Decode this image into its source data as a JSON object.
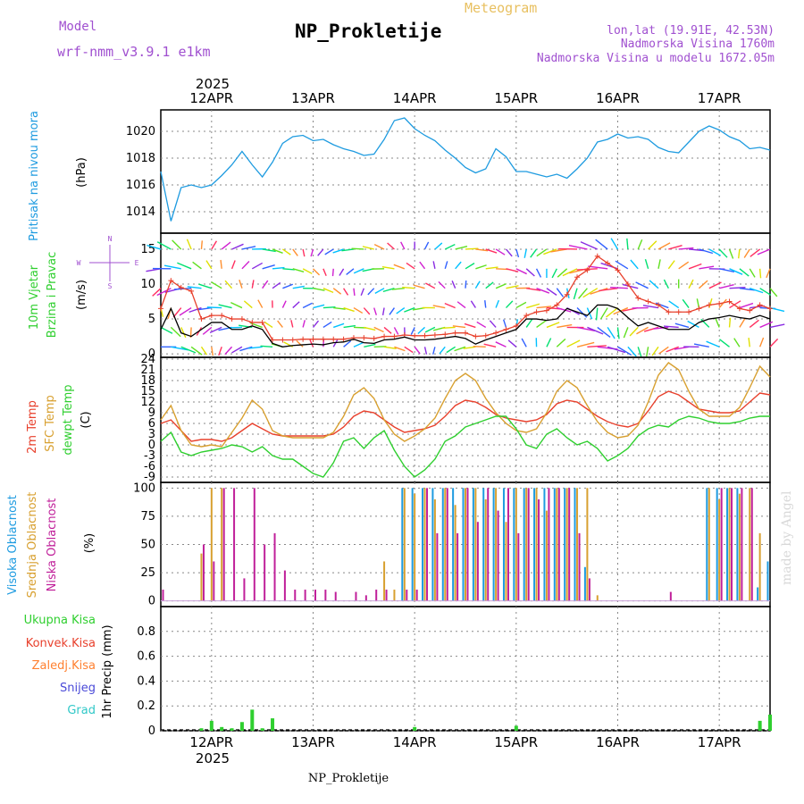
{
  "header": {
    "model_label": "Model",
    "model_name": "wrf-nmm_v3.9.1 e1km",
    "title": "NP_Prokletije",
    "meteogram_label": "Meteogram",
    "coords": "lon,lat (19.91E, 42.53N)",
    "altitude": "Nadmorska Visina 1760m",
    "model_altitude": "Nadmorska Visina u modelu 1672.05m",
    "year": "2025",
    "footer_station": "NP_Prokletije",
    "watermark": "made by Angel"
  },
  "colors": {
    "pressure": "#1e9be0",
    "temp2m": "#e8402c",
    "sfc_temp": "#d8a030",
    "dewpt": "#2fcf2f",
    "high_cloud": "#1e9be0",
    "mid_cloud": "#d8a030",
    "low_cloud": "#c0209a",
    "purple_text": "#a050d0",
    "orange_text": "#e8c060"
  },
  "chart_data": [
    {
      "type": "line",
      "panel": "pressure",
      "ylabel": "Pritisak na nivou mora",
      "unit": "(hPa)",
      "x_range_days": [
        11.5,
        17.5
      ],
      "ylim": [
        1012.4,
        1021.6
      ],
      "yticks": [
        "1014",
        "1016",
        "1018",
        "1020"
      ],
      "x": [
        11.5,
        11.6,
        11.7,
        11.8,
        11.9,
        12.0,
        12.1,
        12.2,
        12.3,
        12.4,
        12.5,
        12.6,
        12.7,
        12.8,
        12.9,
        13.0,
        13.1,
        13.2,
        13.3,
        13.4,
        13.5,
        13.6,
        13.7,
        13.8,
        13.9,
        14.0,
        14.1,
        14.2,
        14.3,
        14.4,
        14.5,
        14.6,
        14.7,
        14.8,
        14.9,
        15.0,
        15.1,
        15.2,
        15.3,
        15.4,
        15.5,
        15.6,
        15.7,
        15.8,
        15.9,
        16.0,
        16.1,
        16.2,
        16.3,
        16.4,
        16.5,
        16.6,
        16.7,
        16.8,
        16.9,
        17.0,
        17.1,
        17.2,
        17.3,
        17.4,
        17.5
      ],
      "values": [
        1017.0,
        1013.3,
        1015.8,
        1016.0,
        1015.8,
        1016.0,
        1016.7,
        1017.5,
        1018.5,
        1017.5,
        1016.6,
        1017.7,
        1019.1,
        1019.6,
        1019.7,
        1019.3,
        1019.4,
        1019.0,
        1018.7,
        1018.5,
        1018.2,
        1018.3,
        1019.4,
        1020.8,
        1021.0,
        1020.2,
        1019.7,
        1019.3,
        1018.6,
        1018.0,
        1017.3,
        1016.9,
        1017.2,
        1018.7,
        1018.1,
        1017.0,
        1017.0,
        1016.8,
        1016.6,
        1016.8,
        1016.5,
        1017.2,
        1018.0,
        1019.2,
        1019.4,
        1019.8,
        1019.5,
        1019.6,
        1019.4,
        1018.8,
        1018.5,
        1018.4,
        1019.2,
        1020.0,
        1020.4,
        1020.1,
        1019.6,
        1019.3,
        1018.7,
        1018.8,
        1018.6
      ]
    },
    {
      "type": "line",
      "panel": "wind",
      "ylabel": "10m Vjetar Brzina i Pravac",
      "unit": "(m/s)",
      "compass": {
        "n": "N",
        "w": "W",
        "e": "E",
        "s": "S"
      },
      "ylim": [
        -0.5,
        17.3
      ],
      "yticks": [
        "0",
        "5",
        "10",
        "15"
      ],
      "series": [
        {
          "values": [
            3.5,
            6.5,
            3.0,
            2.5,
            3.5,
            4.5,
            4.5,
            3.5,
            3.5,
            4.0,
            3.5,
            1.5,
            1.0,
            1.2,
            1.3,
            1.4,
            1.3,
            1.6,
            1.7,
            2.1,
            1.6,
            1.5,
            2.0,
            2.1,
            2.4,
            2.0,
            2.0,
            2.1,
            2.3,
            2.5,
            2.2,
            1.4,
            2.0,
            2.5,
            3.0,
            3.5,
            5.0,
            5.0,
            4.8,
            5.0,
            6.5,
            6.0,
            5.5,
            7.0,
            7.0,
            6.5,
            5.2,
            4.0,
            4.5,
            4.0,
            3.5,
            3.5,
            3.5,
            4.5,
            5.0,
            5.2,
            5.5,
            5.2,
            5.0,
            5.5,
            5.0
          ]
        },
        {
          "values": [
            6.5,
            10.5,
            9.5,
            9.0,
            5.0,
            5.5,
            5.5,
            5.0,
            5.0,
            4.5,
            4.5,
            2.0,
            2.0,
            2.0,
            2.1,
            2.1,
            2.1,
            2.1,
            2.1,
            2.3,
            2.3,
            2.2,
            2.5,
            2.5,
            2.7,
            2.6,
            2.6,
            2.7,
            2.8,
            3.0,
            3.0,
            2.5,
            2.6,
            3.0,
            3.5,
            4.0,
            5.5,
            6.0,
            6.2,
            7.0,
            8.5,
            11.0,
            12.0,
            14.0,
            13.0,
            12.0,
            10.0,
            8.0,
            7.5,
            7.0,
            6.0,
            6.0,
            6.0,
            6.5,
            7.0,
            7.2,
            7.5,
            6.5,
            6.2,
            7.0,
            6.5
          ]
        }
      ]
    },
    {
      "type": "line",
      "panel": "temperature",
      "unit": "(C)",
      "ylim": [
        -10.5,
        24.5
      ],
      "yticks": [
        "-9",
        "-6",
        "-3",
        "0",
        "3",
        "6",
        "9",
        "12",
        "15",
        "18",
        "21",
        "24"
      ],
      "series": [
        {
          "name": "2m Temp",
          "values": [
            6.0,
            7.0,
            4.0,
            1.0,
            1.5,
            1.5,
            1.0,
            2.0,
            4.0,
            6.0,
            4.5,
            3.0,
            2.5,
            2.5,
            2.5,
            2.5,
            2.5,
            3.0,
            5.0,
            8.0,
            9.5,
            9.0,
            7.0,
            5.0,
            3.5,
            4.0,
            4.5,
            5.5,
            8.0,
            11.0,
            12.5,
            12.0,
            10.5,
            8.5,
            7.5,
            7.0,
            6.5,
            7.0,
            8.5,
            11.5,
            12.5,
            12.0,
            10.0,
            8.0,
            6.5,
            5.5,
            5.0,
            6.0,
            9.5,
            13.5,
            15.0,
            14.0,
            12.0,
            10.0,
            9.5,
            9.0,
            9.0,
            9.5,
            12.0,
            14.5,
            14.0
          ]
        },
        {
          "name": "SFC Temp",
          "values": [
            7.0,
            11.0,
            4.0,
            0.0,
            -0.5,
            0.0,
            -0.5,
            3.5,
            7.5,
            12.5,
            10.0,
            4.0,
            2.5,
            2.0,
            2.0,
            2.0,
            2.0,
            3.5,
            8.0,
            14.0,
            16.0,
            13.0,
            7.0,
            3.0,
            1.0,
            2.5,
            4.5,
            7.5,
            13.0,
            18.0,
            20.0,
            18.0,
            13.0,
            9.0,
            6.0,
            4.0,
            3.5,
            4.5,
            9.0,
            15.0,
            18.0,
            16.0,
            11.0,
            6.5,
            3.5,
            2.0,
            2.5,
            5.5,
            12.0,
            19.5,
            23.0,
            21.0,
            15.0,
            10.0,
            8.0,
            8.0,
            8.0,
            10.5,
            16.0,
            22.0,
            19.0
          ]
        },
        {
          "name": "dewpt Temp",
          "values": [
            1.0,
            3.5,
            -2.0,
            -3.0,
            -2.0,
            -1.5,
            -1.0,
            0.0,
            -0.5,
            -2.0,
            -0.5,
            -3.0,
            -4.0,
            -4.0,
            -6.0,
            -8.0,
            -9.0,
            -5.0,
            1.0,
            2.0,
            -1.0,
            2.0,
            4.0,
            -1.5,
            -6.0,
            -9.0,
            -7.0,
            -4.0,
            1.0,
            2.5,
            5.0,
            6.0,
            7.0,
            8.0,
            8.0,
            4.5,
            0.0,
            -1.0,
            3.0,
            4.5,
            2.0,
            0.0,
            1.0,
            -1.0,
            -4.5,
            -3.0,
            -1.0,
            2.5,
            4.5,
            5.5,
            5.0,
            7.0,
            8.0,
            7.5,
            6.5,
            6.0,
            6.0,
            6.5,
            7.5,
            8.0,
            8.0
          ]
        }
      ]
    },
    {
      "type": "bar",
      "panel": "clouds",
      "unit": "(%)",
      "ylim": [
        -5,
        105
      ],
      "yticks": [
        "0",
        "25",
        "50",
        "75",
        "100"
      ],
      "series": [
        {
          "name": "Visoka Oblacnost",
          "values": [
            0,
            0,
            0,
            0,
            0,
            0,
            0,
            0,
            0,
            0,
            0,
            0,
            0,
            0,
            0,
            0,
            0,
            0,
            0,
            0,
            0,
            0,
            0,
            0,
            100,
            100,
            100,
            100,
            100,
            100,
            100,
            100,
            100,
            100,
            100,
            100,
            100,
            100,
            100,
            100,
            100,
            100,
            30,
            0,
            0,
            0,
            0,
            0,
            0,
            0,
            0,
            0,
            0,
            0,
            100,
            100,
            100,
            100,
            0,
            12,
            35
          ]
        },
        {
          "name": "Srednja Oblacnost",
          "values": [
            0,
            0,
            0,
            0,
            42,
            100,
            100,
            0,
            0,
            0,
            0,
            0,
            0,
            0,
            0,
            0,
            0,
            0,
            0,
            0,
            0,
            0,
            35,
            10,
            100,
            95,
            100,
            90,
            100,
            85,
            100,
            100,
            90,
            100,
            70,
            100,
            100,
            100,
            80,
            100,
            100,
            100,
            100,
            5,
            0,
            0,
            0,
            0,
            0,
            0,
            0,
            0,
            0,
            0,
            100,
            90,
            100,
            95,
            100,
            60,
            0
          ]
        },
        {
          "name": "Niska Oblacnost",
          "values": [
            10,
            0,
            0,
            0,
            50,
            35,
            100,
            100,
            20,
            100,
            50,
            60,
            27,
            10,
            10,
            10,
            10,
            8,
            0,
            8,
            5,
            10,
            10,
            0,
            10,
            10,
            100,
            60,
            100,
            60,
            100,
            70,
            100,
            80,
            100,
            60,
            100,
            90,
            100,
            100,
            100,
            60,
            20,
            0,
            0,
            0,
            0,
            0,
            0,
            0,
            8,
            0,
            0,
            0,
            0,
            100,
            100,
            100,
            100,
            0,
            0
          ]
        }
      ]
    },
    {
      "type": "bar",
      "panel": "precipitation",
      "ylabel": "1hr Precip",
      "unit": "(mm)",
      "ylim": [
        0,
        1.0
      ],
      "yticks": [
        "0",
        "0.2",
        "0.4",
        "0.6",
        "0.8"
      ],
      "series": [
        {
          "name": "Ukupna Kisa",
          "values": [
            0,
            0,
            0,
            0,
            0.02,
            0.08,
            0.03,
            0.02,
            0.07,
            0.17,
            0.02,
            0.1,
            0,
            0,
            0,
            0,
            0,
            0,
            0,
            0,
            0,
            0,
            0,
            0,
            0,
            0.03,
            0,
            0,
            0,
            0,
            0,
            0,
            0,
            0,
            0,
            0.04,
            0,
            0,
            0,
            0,
            0,
            0,
            0,
            0,
            0,
            0,
            0,
            0,
            0,
            0,
            0,
            0,
            0,
            0,
            0,
            0,
            0,
            0,
            0,
            0.08,
            0.13
          ]
        }
      ]
    }
  ],
  "legends": {
    "wind_label_1": "10m Vjetar",
    "wind_label_2": "Brzina i Pravac",
    "temp_2m": "2m Temp",
    "temp_sfc": "SFC Temp",
    "temp_dew": "dewpt Temp",
    "cloud_high": "Visoka Oblacnost",
    "cloud_mid": "Srednja Oblacnost",
    "cloud_low": "Niska Oblacnost",
    "precip_total": "Ukupna Kisa",
    "precip_conv": "Konvek.Kisa",
    "precip_frozen": "Zaledj.Kisa",
    "precip_snow": "Snijeg",
    "precip_grad": "Grad"
  },
  "x_axis": {
    "labels": [
      "12APR",
      "13APR",
      "14APR",
      "15APR",
      "16APR",
      "17APR"
    ],
    "day_values": [
      12,
      13,
      14,
      15,
      16,
      17
    ]
  }
}
